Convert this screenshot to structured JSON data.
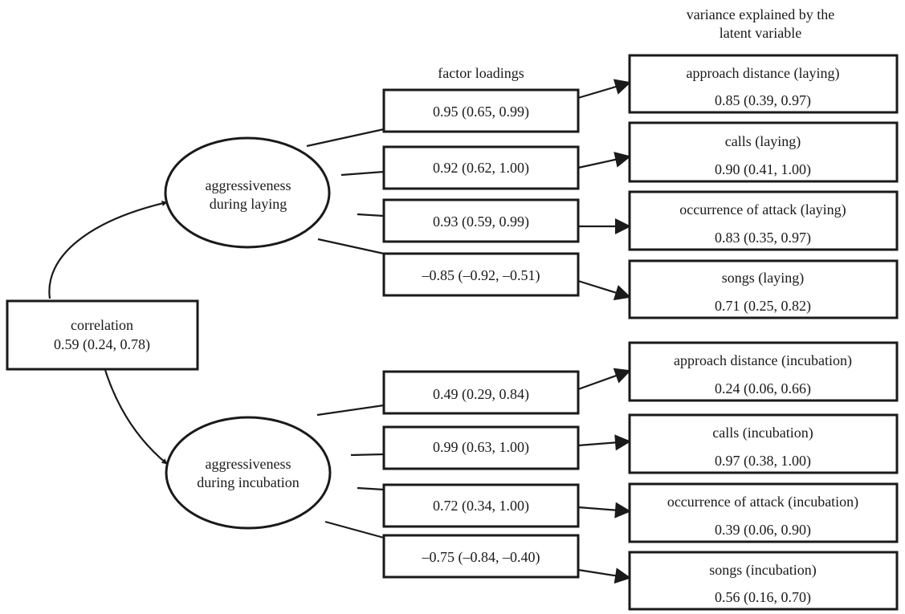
{
  "headers": {
    "variance_line1": "variance explained by the",
    "variance_line2": "latent variable",
    "factor_loadings": "factor loadings"
  },
  "correlation": {
    "label": "correlation",
    "value": "0.59 (0.24, 0.78)"
  },
  "latent": [
    {
      "line1": "aggressiveness",
      "line2": "during laying",
      "loadings": [
        "0.95 (0.65, 0.99)",
        "0.92 (0.62, 1.00)",
        "0.93 (0.59, 0.99)",
        "–0.85 (–0.92, –0.51)"
      ],
      "indicators": [
        {
          "name": "approach distance (laying)",
          "value": "0.85 (0.39, 0.97)"
        },
        {
          "name": "calls (laying)",
          "value": "0.90 (0.41, 1.00)"
        },
        {
          "name": "occurrence of attack (laying)",
          "value": "0.83 (0.35, 0.97)"
        },
        {
          "name": "songs (laying)",
          "value": "0.71 (0.25, 0.82)"
        }
      ]
    },
    {
      "line1": "aggressiveness",
      "line2": "during incubation",
      "loadings": [
        "0.49 (0.29, 0.84)",
        "0.99 (0.63, 1.00)",
        "0.72 (0.34, 1.00)",
        "–0.75 (–0.84, –0.40)"
      ],
      "indicators": [
        {
          "name": "approach distance (incubation)",
          "value": "0.24 (0.06, 0.66)"
        },
        {
          "name": "calls (incubation)",
          "value": "0.97 (0.38, 1.00)"
        },
        {
          "name": "occurrence of attack (incubation)",
          "value": "0.39 (0.06, 0.90)"
        },
        {
          "name": "songs (incubation)",
          "value": "0.56 (0.16, 0.70)"
        }
      ]
    }
  ]
}
